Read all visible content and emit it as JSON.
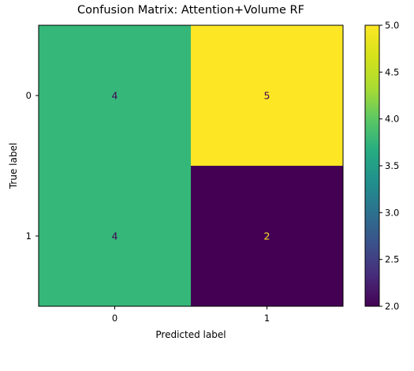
{
  "chart_data": {
    "type": "heatmap",
    "title": "Confusion Matrix: Attention+Volume RF",
    "xlabel": "Predicted label",
    "ylabel": "True label",
    "x_categories": [
      "0",
      "1"
    ],
    "y_categories": [
      "0",
      "1"
    ],
    "values": [
      [
        4,
        5
      ],
      [
        4,
        2
      ]
    ],
    "colormap": "viridis",
    "colorbar": {
      "range": [
        2.0,
        5.0
      ],
      "ticks": [
        "2.0",
        "2.5",
        "3.0",
        "3.5",
        "4.0",
        "4.5",
        "5.0"
      ]
    },
    "cell_colors": [
      [
        "#35b779",
        "#fde725"
      ],
      [
        "#35b779",
        "#440154"
      ]
    ],
    "text_colors": [
      [
        "#440154",
        "#440154"
      ],
      [
        "#440154",
        "#fde725"
      ]
    ],
    "grid": false
  }
}
